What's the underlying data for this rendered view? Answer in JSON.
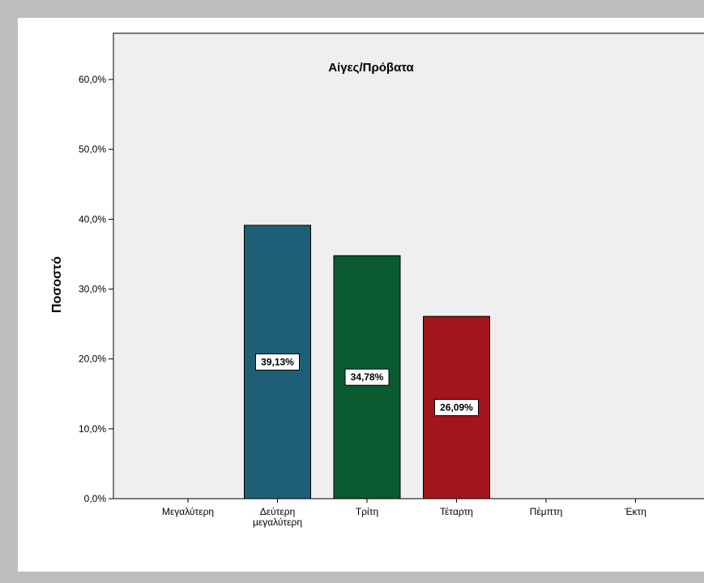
{
  "chart_data": {
    "type": "bar",
    "title": "Αίγες/Πρόβατα",
    "xlabel": "",
    "ylabel": "Ποσοστό",
    "categories": [
      "Μεγαλύτερη",
      "Δεύτερη\nμεγαλύτερη",
      "Τρίτη",
      "Τέταρτη",
      "Πέμπτη",
      "Έκτη"
    ],
    "values": [
      0,
      39.13,
      34.78,
      26.09,
      0,
      0
    ],
    "data_labels": [
      "",
      "39,13%",
      "34,78%",
      "26,09%",
      "",
      ""
    ],
    "bar_colors": [
      "",
      "#1e5f78",
      "#0a5b2f",
      "#a3151a",
      "",
      ""
    ],
    "yticks": [
      {
        "value": 0,
        "label": "0,0%"
      },
      {
        "value": 10,
        "label": "10,0%"
      },
      {
        "value": 20,
        "label": "20,0%"
      },
      {
        "value": 30,
        "label": "30,0%"
      },
      {
        "value": 40,
        "label": "40,0%"
      },
      {
        "value": 50,
        "label": "50,0%"
      },
      {
        "value": 60,
        "label": "60,0%"
      }
    ],
    "ylim": [
      0,
      60
    ],
    "grid": false,
    "plot_background": "#efefef"
  }
}
